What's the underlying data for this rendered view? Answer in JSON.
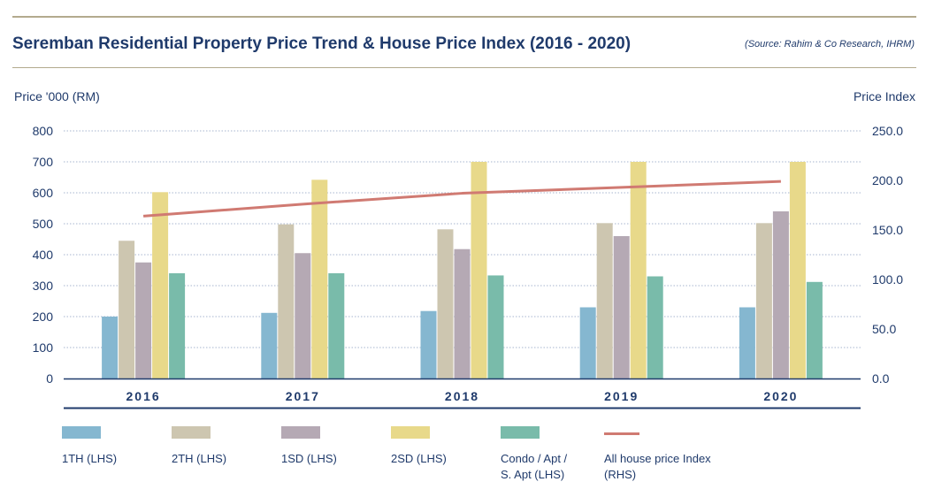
{
  "header": {
    "title": "Seremban Residential Property Price Trend & House Price Index (2016 - 2020)",
    "source": "(Source: Rahim & Co Research, IHRM)"
  },
  "chart_data": {
    "type": "bar",
    "categories": [
      "2016",
      "2017",
      "2018",
      "2019",
      "2020"
    ],
    "ylabel": "Price '000 (RM)",
    "y2label": "Price Index",
    "ylim": [
      0,
      800
    ],
    "y2lim": [
      0,
      250
    ],
    "yticks": [
      "0",
      "100",
      "200",
      "300",
      "400",
      "500",
      "600",
      "700",
      "800"
    ],
    "y2ticks": [
      "0.0",
      "50.0",
      "100.0",
      "150.0",
      "200.0",
      "250.0"
    ],
    "grid": true,
    "legend_position": "bottom",
    "series": [
      {
        "name": "1TH (LHS)",
        "type": "bar",
        "axis": "left",
        "color": "#85b7d0",
        "values": [
          200,
          212,
          218,
          230,
          230
        ]
      },
      {
        "name": "2TH (LHS)",
        "type": "bar",
        "axis": "left",
        "color": "#cdc6b0",
        "values": [
          445,
          498,
          482,
          502,
          502
        ]
      },
      {
        "name": "1SD (LHS)",
        "type": "bar",
        "axis": "left",
        "color": "#b5a9b4",
        "values": [
          375,
          405,
          418,
          460,
          540
        ]
      },
      {
        "name": "2SD (LHS)",
        "type": "bar",
        "axis": "left",
        "color": "#e8d98a",
        "values": [
          602,
          642,
          700,
          700,
          700
        ]
      },
      {
        "name": "Condo / Apt /\nS. Apt (LHS)",
        "type": "bar",
        "axis": "left",
        "color": "#79bbaa",
        "values": [
          340,
          340,
          333,
          330,
          312
        ]
      },
      {
        "name": "All house price Index (RHS)",
        "type": "line",
        "axis": "right",
        "color": "#d07a72",
        "values": [
          164,
          176,
          187,
          193,
          199
        ]
      }
    ]
  }
}
